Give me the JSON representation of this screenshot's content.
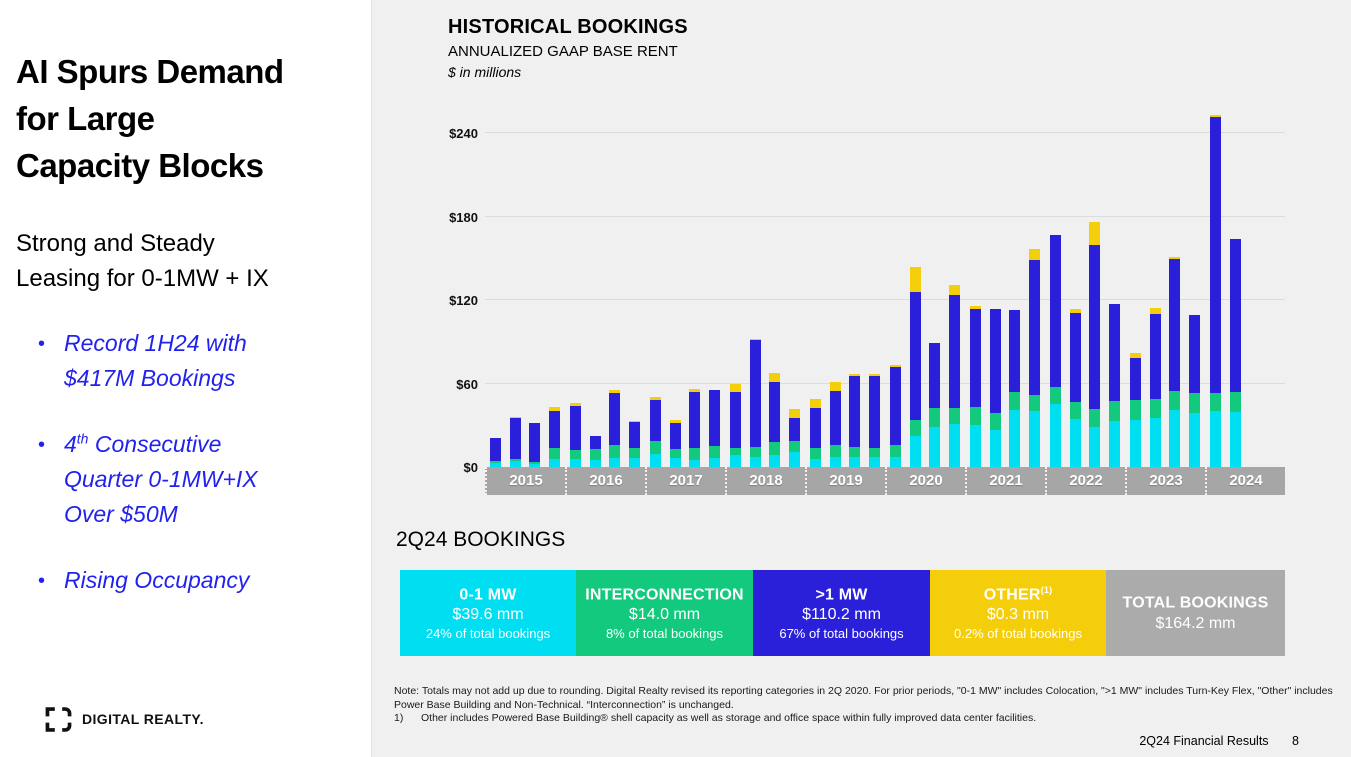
{
  "sidebar": {
    "title": "AI Spurs Demand\nfor Large\nCapacity Blocks",
    "subtitle": "Strong and Steady\nLeasing for 0-1MW + IX",
    "bullets": [
      {
        "pre": "Record 1H24 with\n$417M Bookings",
        "sup": "",
        "post": ""
      },
      {
        "pre": "4",
        "sup": "th",
        "post": " Consecutive\nQuarter 0-1MW+IX\nOver $50M"
      },
      {
        "pre": "Rising Occupancy",
        "sup": "",
        "post": ""
      }
    ],
    "bullet_marker": "•",
    "bullet_color": "#2222ee",
    "logo_text": "DIGITAL REALTY."
  },
  "chart_header": {
    "title": "HISTORICAL BOOKINGS",
    "subtitle": "ANNUALIZED GAAP BASE RENT",
    "units": "$ in millions"
  },
  "chart_data": {
    "type": "bar",
    "stacked": true,
    "title": "HISTORICAL BOOKINGS",
    "subtitle": "ANNUALIZED GAAP BASE RENT",
    "units": "$ in millions",
    "ylim": [
      0,
      240
    ],
    "grid": true,
    "legend_position": "bottom-band-2Q24",
    "yticks": [
      {
        "label": "$0",
        "value": 0
      },
      {
        "label": "$60",
        "value": 60
      },
      {
        "label": "$120",
        "value": 120
      },
      {
        "label": "$180",
        "value": 180
      },
      {
        "label": "$240",
        "value": 240
      }
    ],
    "gridlines": [
      60,
      120,
      180,
      240
    ],
    "years": [
      "2015",
      "2016",
      "2017",
      "2018",
      "2019",
      "2020",
      "2021",
      "2022",
      "2023",
      "2024"
    ],
    "categories": [
      "1Q15",
      "2Q15",
      "3Q15",
      "4Q15",
      "1Q16",
      "2Q16",
      "3Q16",
      "4Q16",
      "1Q17",
      "2Q17",
      "3Q17",
      "4Q17",
      "1Q18",
      "2Q18",
      "3Q18",
      "4Q18",
      "1Q19",
      "2Q19",
      "3Q19",
      "4Q19",
      "1Q20",
      "2Q20",
      "3Q20",
      "4Q20",
      "1Q21",
      "2Q21",
      "3Q21",
      "4Q21",
      "1Q22",
      "2Q22",
      "3Q22",
      "4Q22",
      "1Q23",
      "2Q23",
      "3Q23",
      "4Q23",
      "1Q24",
      "2Q24"
    ],
    "series": [
      {
        "name": "0-1 MW",
        "color": "#00dff2",
        "values": [
          3,
          4,
          2,
          6,
          5.5,
          5,
          6.5,
          6.5,
          9,
          6.5,
          5,
          6.5,
          8.5,
          7,
          8.5,
          10.5,
          5.5,
          7,
          7,
          7.5,
          7,
          22,
          29,
          31,
          30.5,
          26.5,
          41,
          40,
          45.5,
          34.5,
          29,
          33,
          34,
          35.5,
          41,
          38.5,
          40,
          39.6
        ]
      },
      {
        "name": "Interconnection",
        "color": "#12c97d",
        "values": [
          1.5,
          1.5,
          1.5,
          7.5,
          7,
          8,
          9.5,
          7.5,
          9.5,
          6.5,
          9,
          8.5,
          5,
          7.5,
          9.5,
          8,
          8.5,
          9,
          7.5,
          6,
          9,
          12,
          13.5,
          11.5,
          12.5,
          12.5,
          13,
          12,
          12,
          12.5,
          13,
          14.5,
          14.5,
          13.5,
          13.5,
          15,
          13,
          14
        ]
      },
      {
        "name": ">1 MW",
        "color": "#2a20d9",
        "values": [
          16,
          30,
          28,
          27,
          31.5,
          9,
          37,
          18,
          30,
          19,
          40,
          40,
          40.5,
          76.5,
          43,
          17,
          28.5,
          38.5,
          51,
          52,
          56,
          92,
          46.5,
          81,
          70.5,
          74.5,
          58.5,
          96.5,
          109,
          64,
          117.5,
          69.5,
          29.5,
          61,
          95,
          55.5,
          198.3,
          110.2
        ]
      },
      {
        "name": "Other",
        "color": "#f5ce0b",
        "values": [
          0.5,
          0.5,
          0.5,
          2.5,
          2,
          0,
          2,
          1,
          1.5,
          2,
          2,
          0,
          6,
          1,
          6.5,
          6.5,
          6.5,
          6.5,
          1,
          1.5,
          1.5,
          17.5,
          0,
          7,
          2.5,
          0,
          0,
          8.5,
          0,
          2.5,
          16.5,
          0,
          4,
          4,
          1.5,
          0,
          1.5,
          0.3
        ]
      }
    ]
  },
  "bookings": {
    "heading": "2Q24 BOOKINGS",
    "blocks": [
      {
        "label": "0-1 MW",
        "sup": "",
        "value": "$39.6 mm",
        "share": "24% of total bookings",
        "color": "#00dff2",
        "width": 176
      },
      {
        "label": "INTERCONNECTION",
        "sup": "",
        "value": "$14.0 mm",
        "share": "8% of total bookings",
        "color": "#12c97d",
        "width": 177
      },
      {
        "label": ">1 MW",
        "sup": "",
        "value": "$110.2 mm",
        "share": "67% of total bookings",
        "color": "#2a20d9",
        "width": 177
      },
      {
        "label": "OTHER",
        "sup": "(1)",
        "value": "$0.3 mm",
        "share": "0.2% of total bookings",
        "color": "#f5ce0b",
        "width": 176
      },
      {
        "label": "TOTAL BOOKINGS",
        "sup": "",
        "value": "$164.2 mm",
        "share": "",
        "color": "#ababab",
        "width": 179
      }
    ]
  },
  "notes": {
    "note": "Note: Totals may not add up due to rounding. Digital Realty revised its reporting categories in 2Q 2020. For prior periods, \"0-1 MW\" includes Colocation, \">1 MW\" includes Turn-Key Flex, \"Other\" includes Power Base Building and Non-Technical. “Interconnection” is unchanged.",
    "footnote_marker": "1)",
    "footnote": "Other includes Powered Base Building® shell capacity as well as storage and office space within fully improved data center facilities."
  },
  "footer": {
    "label": "2Q24 Financial Results",
    "page": "8"
  }
}
